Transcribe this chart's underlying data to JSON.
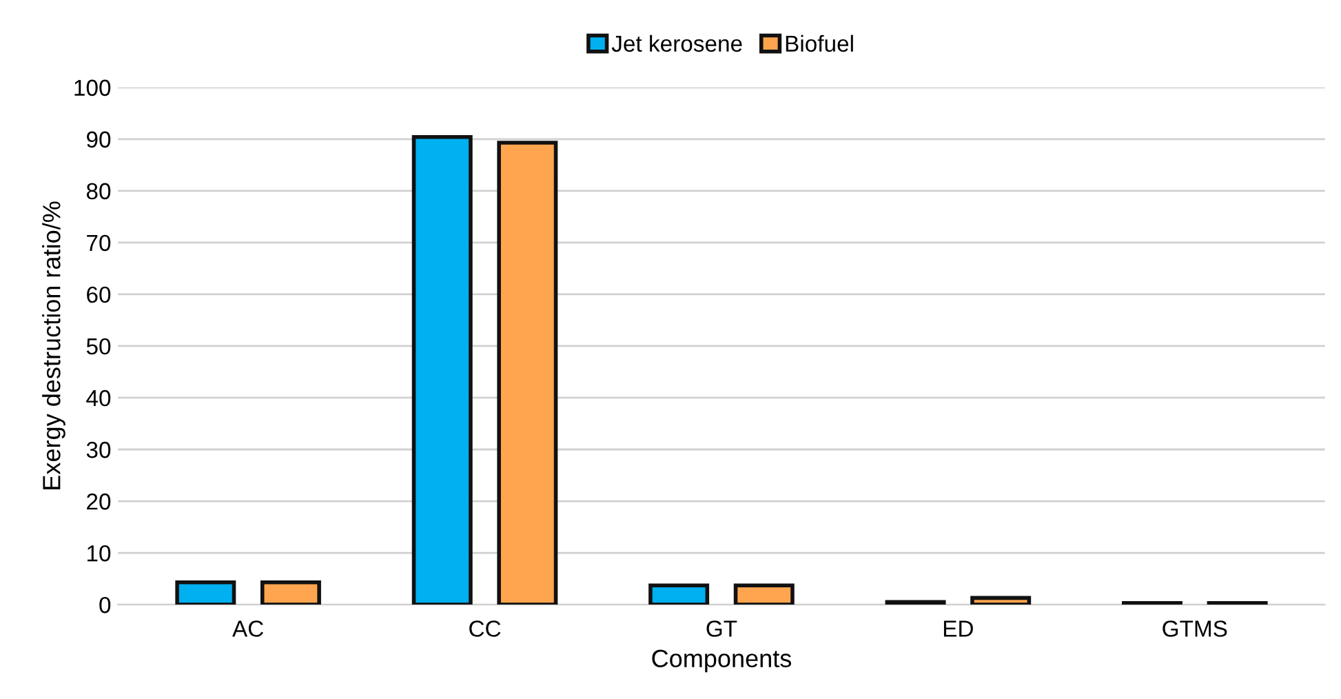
{
  "chart_data": {
    "type": "bar",
    "xlabel": "Components",
    "ylabel": "Exergy destruction ratio/%",
    "categories": [
      "AC",
      "CC",
      "GT",
      "ED",
      "GTMS"
    ],
    "series": [
      {
        "name": "Jet kerosene",
        "color": "#00b0f0",
        "values": [
          4.3,
          90.4,
          3.7,
          0.5,
          0.3
        ]
      },
      {
        "name": "Biofuel",
        "color": "#ffa54f",
        "values": [
          4.3,
          89.3,
          3.7,
          1.3,
          0.3
        ]
      }
    ],
    "ylim": [
      0,
      100
    ],
    "yticks": [
      0,
      10,
      20,
      30,
      40,
      50,
      60,
      70,
      80,
      90,
      100
    ],
    "grid": "y",
    "legend": "top"
  }
}
